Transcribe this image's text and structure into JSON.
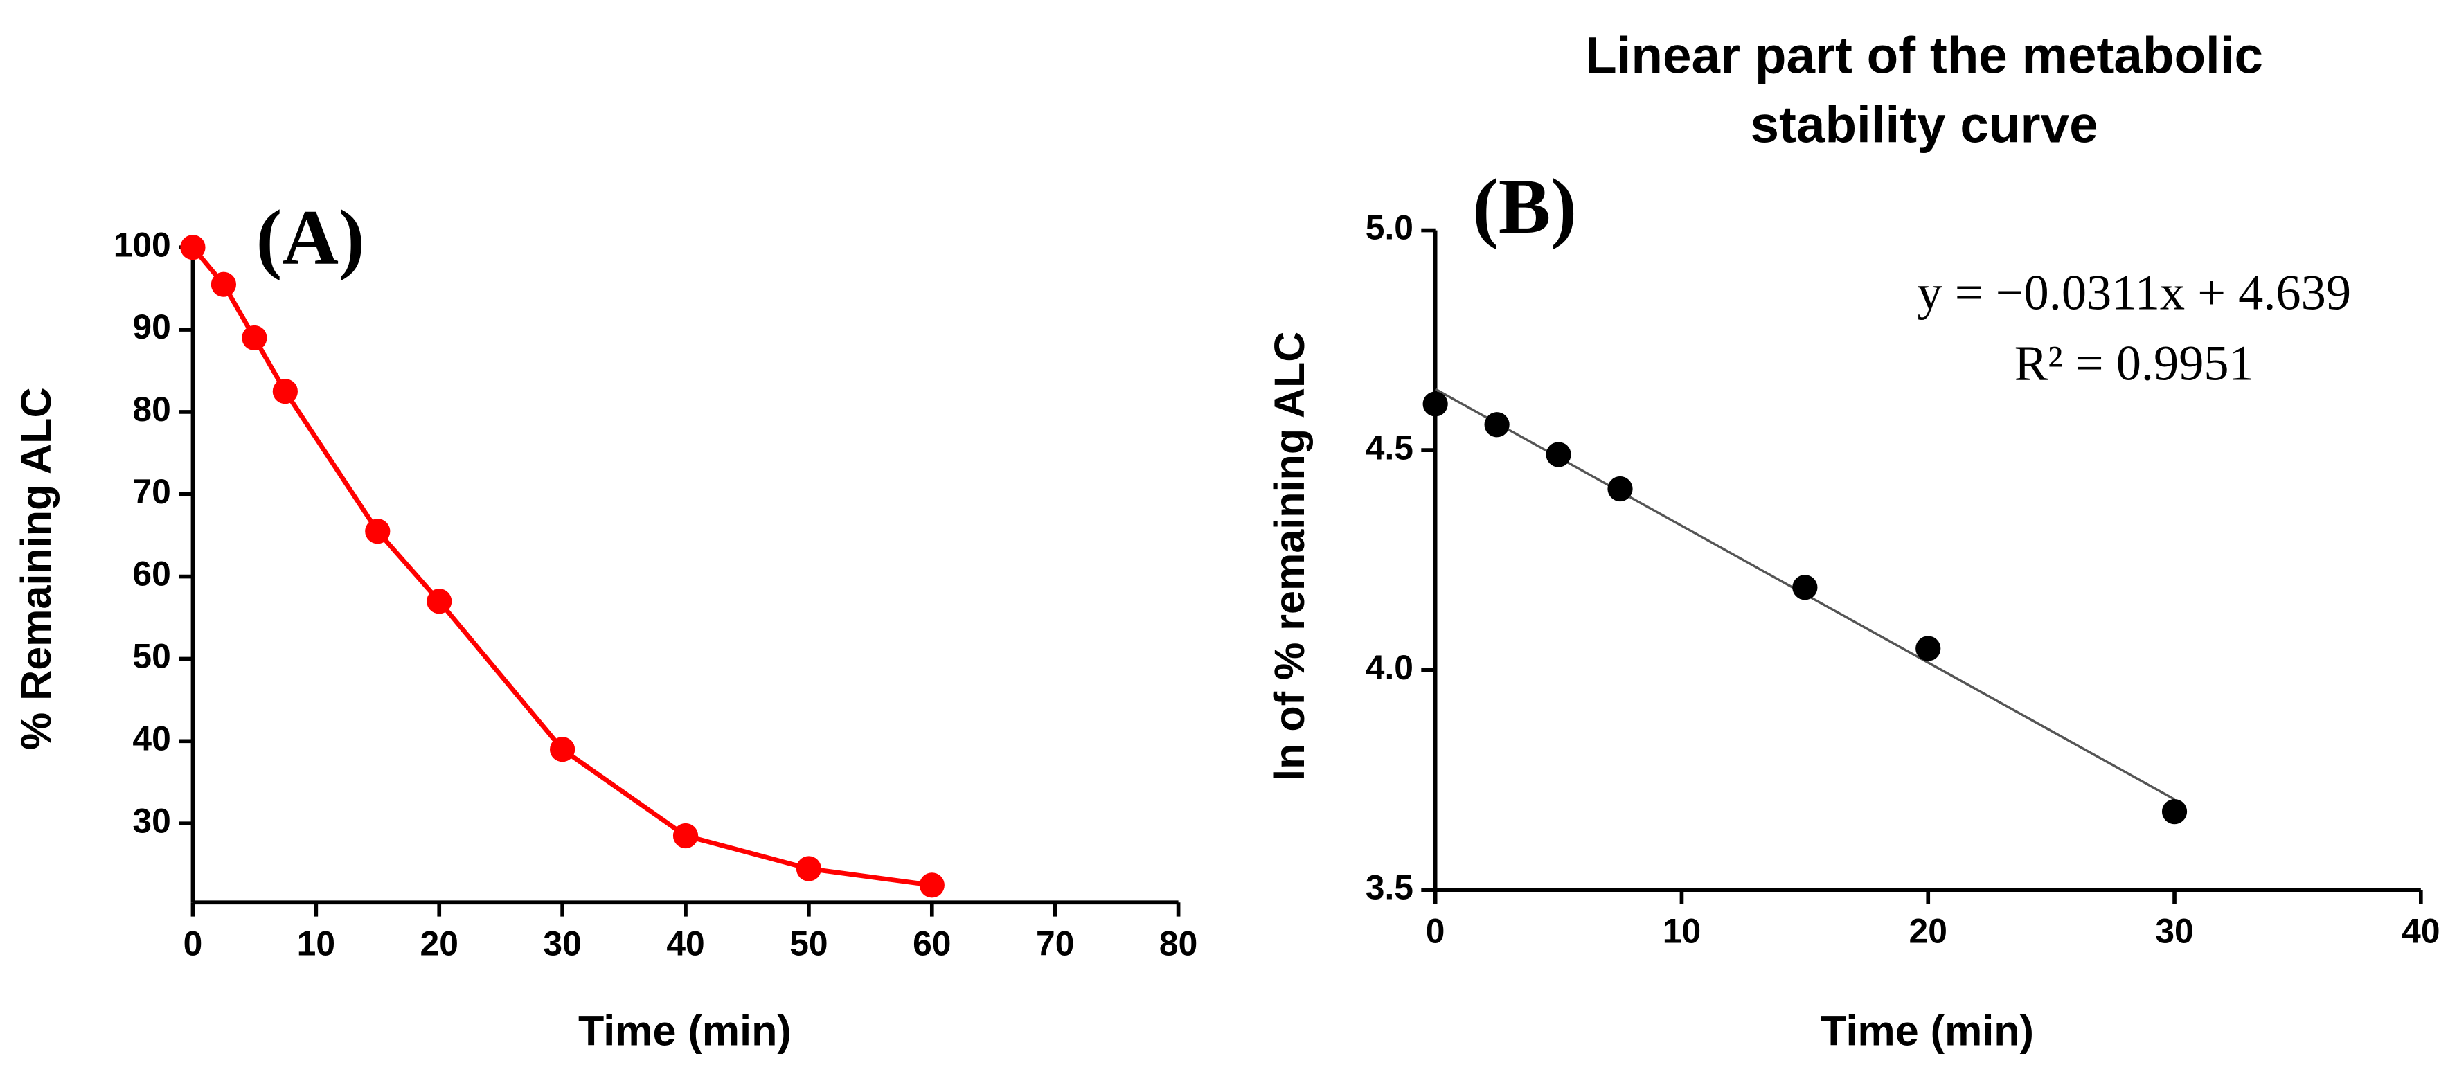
{
  "chart_data": [
    {
      "type": "line",
      "panel_label": "(A)",
      "x_label": "Time (min)",
      "y_label": "% Remaining ALC",
      "x": [
        0,
        2.5,
        5,
        7.5,
        15,
        20,
        30,
        40,
        50,
        60
      ],
      "values": [
        100,
        95.5,
        89,
        82.5,
        65.5,
        57,
        39,
        28.5,
        24.5,
        22.5
      ],
      "color": "#ff0000",
      "xlim": [
        0,
        80
      ],
      "xticks": [
        0,
        10,
        20,
        30,
        40,
        50,
        60,
        70,
        80
      ],
      "ylim": [
        20.4,
        101.5
      ],
      "yticks": [
        30,
        40,
        50,
        60,
        70,
        80,
        90,
        100
      ]
    },
    {
      "type": "scatter",
      "title": [
        "Linear part of the metabolic",
        "stability curve"
      ],
      "panel_label": "(B)",
      "x_label": "Time (min)",
      "y_label": "ln of % remaining ALC",
      "x": [
        0,
        2.5,
        5,
        7.5,
        15,
        20,
        30
      ],
      "values": [
        4.605,
        4.558,
        4.49,
        4.412,
        4.188,
        4.049,
        3.678
      ],
      "color": "#000000",
      "trendline": {
        "slope": -0.0311,
        "intercept": 4.639,
        "equation": "y = −0.0311x + 4.639",
        "r2": "R² = 0.9951",
        "color": "#555555"
      },
      "xlim": [
        0,
        40
      ],
      "xticks": [
        0,
        10,
        20,
        30,
        40
      ],
      "ylim": [
        3.5,
        5.0
      ],
      "yticks": [
        3.5,
        {
          "value": 4.0,
          "label": "4.0"
        },
        4.5,
        {
          "value": 5.0,
          "label": "5.0"
        }
      ]
    }
  ]
}
